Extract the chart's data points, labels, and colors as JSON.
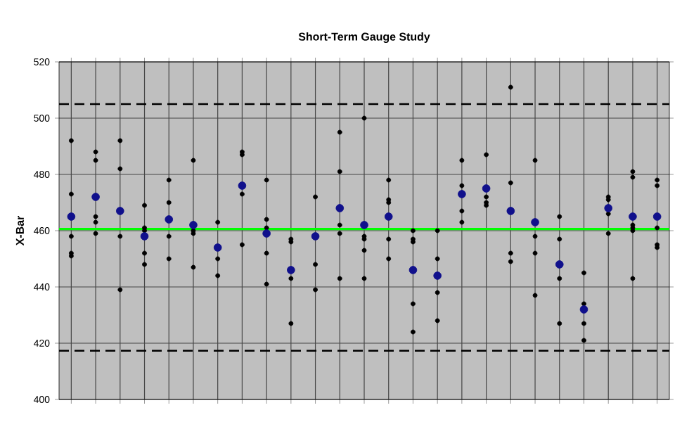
{
  "chart_data": {
    "type": "scatter",
    "title": "Short-Term Gauge Study",
    "ylabel": "X-Bar",
    "categories": [
      null,
      null,
      null,
      null,
      null,
      null,
      null,
      null,
      null,
      null,
      null,
      null,
      null,
      null,
      null,
      null,
      null,
      null,
      null,
      null,
      null,
      null,
      null,
      null,
      null
    ],
    "ylim": [
      400,
      520
    ],
    "yticks": [
      400,
      420,
      440,
      460,
      480,
      500,
      520
    ],
    "grid": true,
    "series": [
      {
        "color": "#000000",
        "values": [
          492,
          488,
          492,
          469,
          478,
          485,
          463,
          488,
          478,
          457,
          472,
          495,
          500,
          478,
          460,
          460,
          485,
          487,
          511,
          485,
          465,
          445,
          472,
          481,
          478
        ]
      },
      {
        "color": "#000000",
        "values": [
          473,
          485,
          482,
          461,
          470,
          460,
          450,
          487,
          464,
          456,
          null,
          481,
          458,
          471,
          457,
          450,
          476,
          null,
          477,
          458,
          457,
          434,
          471,
          479,
          476
        ]
      },
      {
        "color": "#000000",
        "values": [
          458,
          465,
          null,
          460,
          null,
          459,
          444,
          473,
          461,
          443,
          448,
          462,
          457,
          470,
          456,
          438,
          467,
          472,
          452,
          452,
          null,
          null,
          466,
          462,
          461
        ]
      },
      {
        "color": "#000000",
        "values": [
          452,
          463,
          458,
          452,
          458,
          447,
          null,
          455,
          452,
          427,
          439,
          459,
          453,
          457,
          434,
          428,
          463,
          470,
          449,
          437,
          443,
          427,
          459,
          461,
          455
        ]
      },
      {
        "color": "#000000",
        "values": [
          451,
          459,
          439,
          448,
          450,
          null,
          null,
          null,
          441,
          null,
          null,
          443,
          443,
          450,
          424,
          null,
          null,
          469,
          null,
          null,
          427,
          421,
          null,
          460,
          454
        ]
      },
      {
        "color": "#000000",
        "values": [
          null,
          null,
          null,
          null,
          null,
          null,
          null,
          null,
          null,
          null,
          null,
          null,
          null,
          null,
          null,
          null,
          null,
          null,
          null,
          null,
          null,
          null,
          null,
          443,
          null
        ]
      },
      {
        "color": "#10108c",
        "values": [
          465,
          472,
          467,
          458,
          464,
          462,
          454,
          476,
          459,
          446,
          458,
          468,
          462,
          465,
          446,
          444,
          473,
          475,
          467,
          463,
          448,
          432,
          468,
          465,
          465
        ]
      }
    ],
    "ref_lines": [
      {
        "axis": "y",
        "value": 460.6,
        "color": "#00ff00",
        "line_style": "solid"
      },
      {
        "axis": "y",
        "value": 505,
        "color": "#000000",
        "line_style": "dashed"
      },
      {
        "axis": "y",
        "value": 417.3,
        "color": "#000000",
        "line_style": "dashed"
      }
    ]
  }
}
